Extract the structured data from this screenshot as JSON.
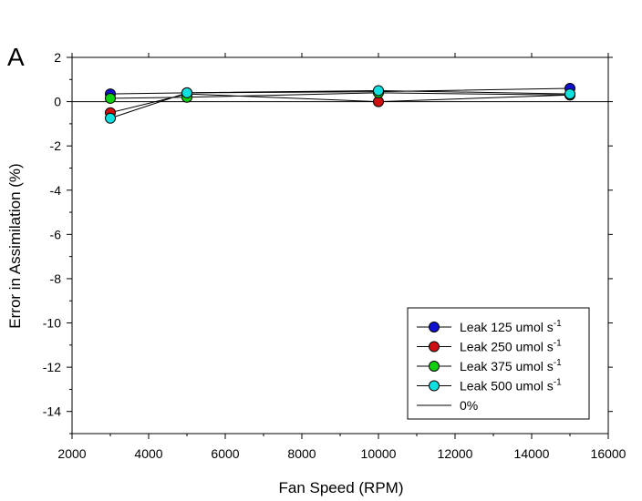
{
  "panel_label": "A",
  "chart_data": {
    "type": "line",
    "title": "",
    "xlabel": "Fan Speed (RPM)",
    "ylabel": "Error in Assimilation (%)",
    "xlim": [
      2000,
      16000
    ],
    "ylim": [
      -15,
      2
    ],
    "x_ticks": [
      2000,
      4000,
      6000,
      8000,
      10000,
      12000,
      14000,
      16000
    ],
    "y_ticks": [
      2,
      0,
      -2,
      -4,
      -6,
      -8,
      -10,
      -12,
      -14
    ],
    "x_tick_labels": [
      "2000",
      "4000",
      "6000",
      "8000",
      "10000",
      "12000",
      "14000",
      "16000"
    ],
    "y_tick_labels": [
      "2",
      "0",
      "-2",
      "-4",
      "-6",
      "-8",
      "-10",
      "-12",
      "-14"
    ],
    "grid": false,
    "legend_position": "bottom-right",
    "x": [
      3000,
      5000,
      10000,
      15000
    ],
    "series": [
      {
        "name": "Leak 125 umol s",
        "name_sup": "-1",
        "color": "#1010d0",
        "values": [
          0.35,
          0.4,
          0.45,
          0.6
        ]
      },
      {
        "name": "Leak 250 umol s",
        "name_sup": "-1",
        "color": "#d01010",
        "values": [
          -0.5,
          0.35,
          0.0,
          0.3
        ]
      },
      {
        "name": "Leak 375 umol s",
        "name_sup": "-1",
        "color": "#10d010",
        "values": [
          0.15,
          0.2,
          0.4,
          0.3
        ]
      },
      {
        "name": "Leak 500 umol s",
        "name_sup": "-1",
        "color": "#10e0e0",
        "values": [
          -0.75,
          0.4,
          0.5,
          0.35
        ]
      }
    ],
    "reference_line": {
      "name": "0%",
      "y": 0,
      "color": "#000000"
    }
  }
}
